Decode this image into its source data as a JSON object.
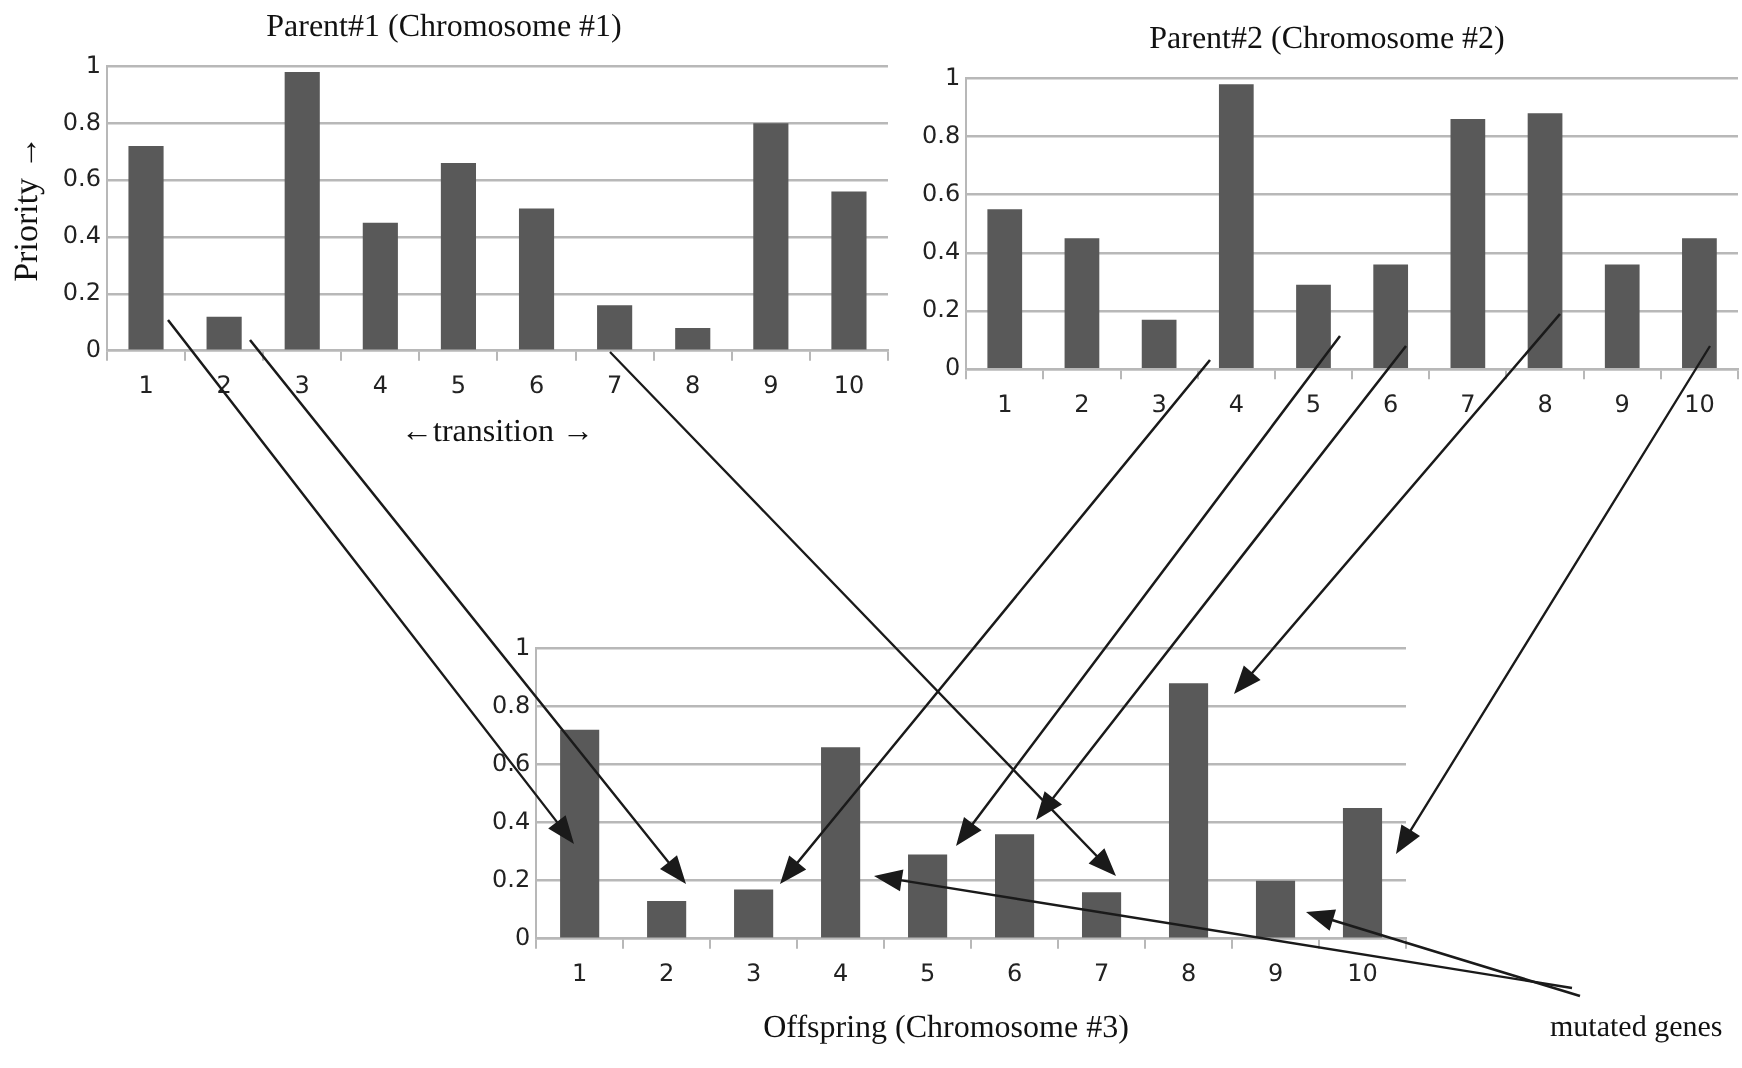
{
  "chart_data": [
    {
      "type": "bar",
      "title": "Parent#1 (Chromosome #1)",
      "xlabel": "←transition →",
      "ylabel": "Priority →",
      "categories": [
        "1",
        "2",
        "3",
        "4",
        "5",
        "6",
        "7",
        "8",
        "9",
        "10"
      ],
      "values": [
        0.72,
        0.12,
        0.98,
        0.45,
        0.66,
        0.5,
        0.16,
        0.08,
        0.8,
        0.56
      ],
      "color": "#595959",
      "ylim": [
        0,
        1
      ],
      "yticks": [
        0,
        0.2,
        0.4,
        0.6,
        0.8,
        1
      ],
      "grid": "y",
      "legend": false
    },
    {
      "type": "bar",
      "title": "Parent#2 (Chromosome #2)",
      "categories": [
        "1",
        "2",
        "3",
        "4",
        "5",
        "6",
        "7",
        "8",
        "9",
        "10"
      ],
      "values": [
        0.55,
        0.45,
        0.17,
        0.98,
        0.29,
        0.36,
        0.86,
        0.88,
        0.36,
        0.45
      ],
      "color": "#595959",
      "ylim": [
        0,
        1
      ],
      "yticks": [
        0,
        0.2,
        0.4,
        0.6,
        0.8,
        1
      ],
      "grid": "y",
      "legend": false
    },
    {
      "type": "bar",
      "title": "Offspring (Chromosome #3)",
      "categories": [
        "1",
        "2",
        "3",
        "4",
        "5",
        "6",
        "7",
        "8",
        "9",
        "10"
      ],
      "values": [
        0.72,
        0.13,
        0.17,
        0.66,
        0.29,
        0.36,
        0.16,
        0.88,
        0.2,
        0.45
      ],
      "color": "#595959",
      "ylim": [
        0,
        1
      ],
      "yticks": [
        0,
        0.2,
        0.4,
        0.6,
        0.8,
        1
      ],
      "grid": "y",
      "legend": false,
      "annotations": [
        "mutated genes"
      ]
    }
  ]
}
